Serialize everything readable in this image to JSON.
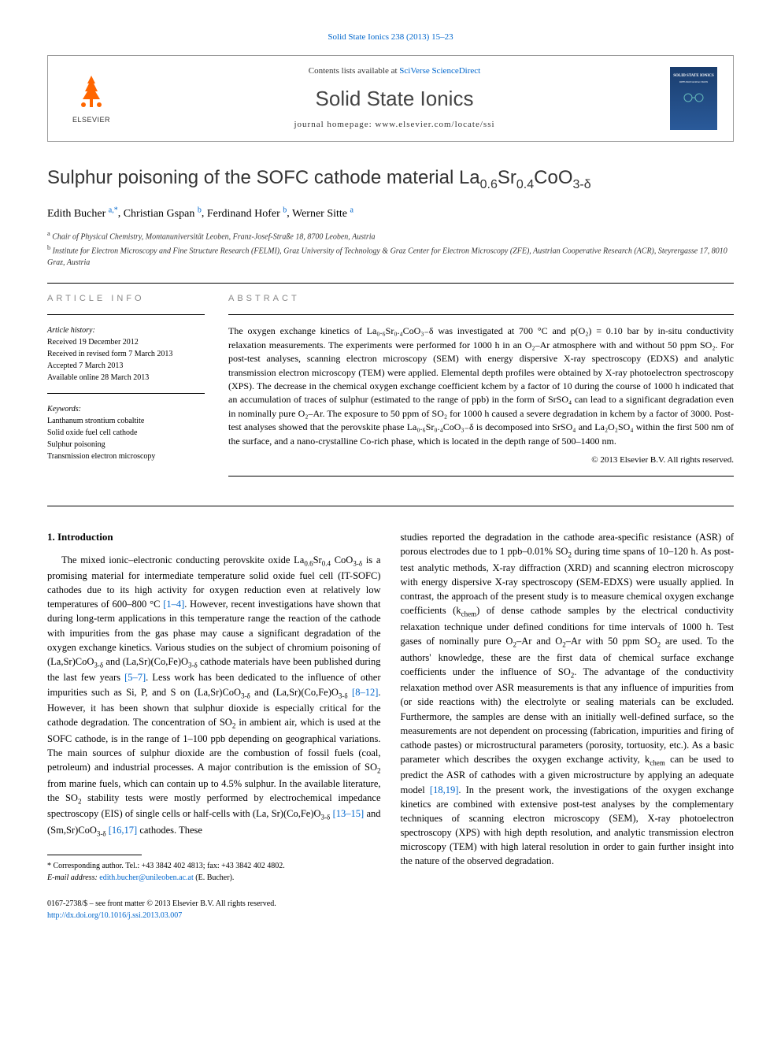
{
  "top_link": "Solid State Ionics 238 (2013) 15–23",
  "header": {
    "contents_prefix": "Contents lists available at ",
    "contents_link": "SciVerse ScienceDirect",
    "journal_name": "Solid State Ionics",
    "homepage": "journal homepage: www.elsevier.com/locate/ssi",
    "elsevier_label": "ELSEVIER",
    "cover_label_1": "SOLID STATE IONICS",
    "cover_label_2": "DIFFUSION & REACTIONS"
  },
  "title_parts": {
    "prefix": "Sulphur poisoning of the SOFC cathode material La",
    "sub1": "0.6",
    "mid1": "Sr",
    "sub2": "0.4",
    "mid2": "CoO",
    "sub3": "3-δ"
  },
  "authors": [
    {
      "name": "Edith Bucher",
      "aff": "a,",
      "corr": "*"
    },
    {
      "name": "Christian Gspan",
      "aff": "b"
    },
    {
      "name": "Ferdinand Hofer",
      "aff": "b"
    },
    {
      "name": "Werner Sitte",
      "aff": "a"
    }
  ],
  "affiliations": [
    {
      "sup": "a",
      "text": "Chair of Physical Chemistry, Montanuniversität Leoben, Franz-Josef-Straße 18, 8700 Leoben, Austria"
    },
    {
      "sup": "b",
      "text": "Institute for Electron Microscopy and Fine Structure Research (FELMI), Graz University of Technology & Graz Center for Electron Microscopy (ZFE), Austrian Cooperative Research (ACR), Steyrergasse 17, 8010 Graz, Austria"
    }
  ],
  "article_info": {
    "heading": "ARTICLE INFO",
    "history_label": "Article history:",
    "history": [
      "Received 19 December 2012",
      "Received in revised form 7 March 2013",
      "Accepted 7 March 2013",
      "Available online 28 March 2013"
    ],
    "keywords_label": "Keywords:",
    "keywords": [
      "Lanthanum strontium cobaltite",
      "Solid oxide fuel cell cathode",
      "Sulphur poisoning",
      "Transmission electron microscopy"
    ]
  },
  "abstract": {
    "heading": "ABSTRACT",
    "text": "The oxygen exchange kinetics of La₀.₆Sr₀.₄CoO₃₋δ was investigated at 700 °C and p(O₂) = 0.10 bar by in-situ conductivity relaxation measurements. The experiments were performed for 1000 h in an O₂–Ar atmosphere with and without 50 ppm SO₂. For post-test analyses, scanning electron microscopy (SEM) with energy dispersive X-ray spectroscopy (EDXS) and analytic transmission electron microscopy (TEM) were applied. Elemental depth profiles were obtained by X-ray photoelectron spectroscopy (XPS). The decrease in the chemical oxygen exchange coefficient kchem by a factor of 10 during the course of 1000 h indicated that an accumulation of traces of sulphur (estimated to the range of ppb) in the form of SrSO₄ can lead to a significant degradation even in nominally pure O₂–Ar. The exposure to 50 ppm of SO₂ for 1000 h caused a severe degradation in kchem by a factor of 3000. Post-test analyses showed that the perovskite phase La₀.₆Sr₀.₄CoO₃₋δ is decomposed into SrSO₄ and La₂O₂SO₄ within the first 500 nm of the surface, and a nano-crystalline Co-rich phase, which is located in the depth range of 500–1400 nm.",
    "copyright": "© 2013 Elsevier B.V. All rights reserved."
  },
  "intro": {
    "heading": "1. Introduction",
    "col1_html": "The mixed ionic–electronic conducting perovskite oxide La<sub>0.6</sub>Sr<sub>0.4</sub> CoO<sub>3-δ</sub> is a promising material for intermediate temperature solid oxide fuel cell (IT-SOFC) cathodes due to its high activity for oxygen reduction even at relatively low temperatures of 600–800 °C <a href='#'>[1–4]</a>. However, recent investigations have shown that during long-term applications in this temperature range the reaction of the cathode with impurities from the gas phase may cause a significant degradation of the oxygen exchange kinetics. Various studies on the subject of chromium poisoning of (La,Sr)CoO<sub>3-δ</sub> and (La,Sr)(Co,Fe)O<sub>3-δ</sub> cathode materials have been published during the last few years <a href='#'>[5–7]</a>. Less work has been dedicated to the influence of other impurities such as Si, P, and S on (La,Sr)CoO<sub>3-δ</sub> and (La,Sr)(Co,Fe)O<sub>3-δ</sub> <a href='#'>[8–12]</a>. However, it has been shown that sulphur dioxide is especially critical for the cathode degradation. The concentration of SO<sub>2</sub> in ambient air, which is used at the SOFC cathode, is in the range of 1–100 ppb depending on geographical variations. The main sources of sulphur dioxide are the combustion of fossil fuels (coal, petroleum) and industrial processes. A major contribution is the emission of SO<sub>2</sub> from marine fuels, which can contain up to 4.5% sulphur. In the available literature, the SO<sub>2</sub> stability tests were mostly performed by electrochemical impedance spectroscopy (EIS) of single cells or half-cells with (La, Sr)(Co,Fe)O<sub>3-δ</sub> <a href='#'>[13–15]</a> and (Sm,Sr)CoO<sub>3-δ</sub> <a href='#'>[16,17]</a> cathodes. These",
    "col2_html": "studies reported the degradation in the cathode area-specific resistance (ASR) of porous electrodes due to 1 ppb–0.01% SO<sub>2</sub> during time spans of 10–120 h. As post-test analytic methods, X-ray diffraction (XRD) and scanning electron microscopy with energy dispersive X-ray spectroscopy (SEM-EDXS) were usually applied. In contrast, the approach of the present study is to measure chemical oxygen exchange coefficients (k<sub>chem</sub>) of dense cathode samples by the electrical conductivity relaxation technique under defined conditions for time intervals of 1000 h. Test gases of nominally pure O<sub>2</sub>–Ar and O<sub>2</sub>–Ar with 50 ppm SO<sub>2</sub> are used. To the authors' knowledge, these are the first data of chemical surface exchange coefficients under the influence of SO<sub>2</sub>. The advantage of the conductivity relaxation method over ASR measurements is that any influence of impurities from (or side reactions with) the electrolyte or sealing materials can be excluded. Furthermore, the samples are dense with an initially well-defined surface, so the measurements are not dependent on processing (fabrication, impurities and firing of cathode pastes) or microstructural parameters (porosity, tortuosity, etc.). As a basic parameter which describes the oxygen exchange activity, k<sub>chem</sub> can be used to predict the ASR of cathodes with a given microstructure by applying an adequate model <a href='#'>[18,19]</a>. In the present work, the investigations of the oxygen exchange kinetics are combined with extensive post-test analyses by the complementary techniques of scanning electron microscopy (SEM), X-ray photoelectron spectroscopy (XPS) with high depth resolution, and analytic transmission electron microscopy (TEM) with high lateral resolution in order to gain further insight into the nature of the observed degradation."
  },
  "footnotes": {
    "corr": "* Corresponding author. Tel.: +43 3842 402 4813; fax: +43 3842 402 4802.",
    "email_label": "E-mail address: ",
    "email": "edith.bucher@unileoben.ac.at",
    "email_author": " (E. Bucher)."
  },
  "bottom": {
    "issn": "0167-2738/$ – see front matter © 2013 Elsevier B.V. All rights reserved.",
    "doi": "http://dx.doi.org/10.1016/j.ssi.2013.03.007"
  },
  "colors": {
    "link": "#0066cc",
    "elsevier_orange": "#ff6600",
    "cover_bg_top": "#1a3d6d",
    "cover_bg_bottom": "#2a5a9a",
    "heading_gray": "#888888",
    "text": "#000000",
    "border": "#999999"
  }
}
